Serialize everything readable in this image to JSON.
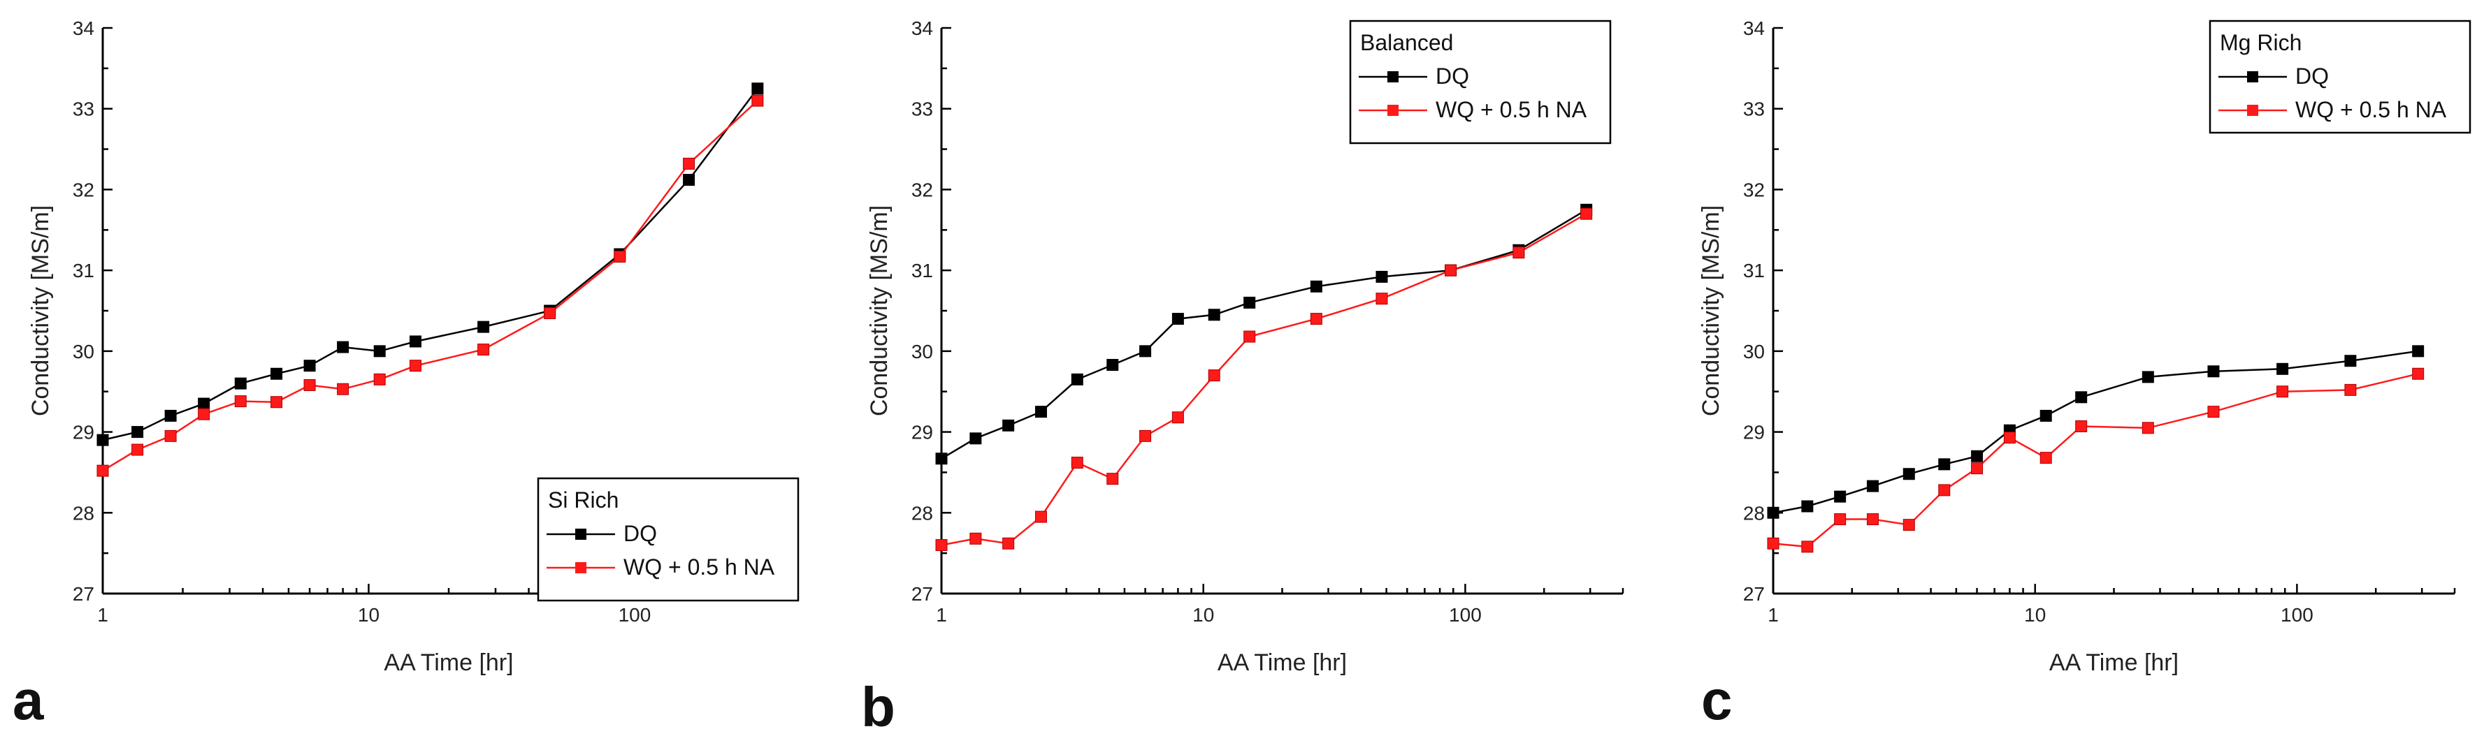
{
  "chart_data": [
    {
      "panel_label": "a",
      "type": "line",
      "xscale": "log",
      "xlabel": "AA Time [hr]",
      "ylabel": "Conductivity [MS/m]",
      "xlim": [
        1,
        400
      ],
      "ylim": [
        27,
        34
      ],
      "xticks": [
        1,
        10,
        100
      ],
      "xtick_labels": [
        "1",
        "10",
        "100"
      ],
      "yticks": [
        27,
        28,
        29,
        30,
        31,
        32,
        33,
        34
      ],
      "ytick_labels": [
        "27",
        "28",
        "29",
        "30",
        "31",
        "32",
        "33",
        "34"
      ],
      "legend_position": "bottom-right",
      "legend_title": "Si Rich",
      "x": [
        1,
        1.35,
        1.8,
        2.4,
        3.3,
        4.5,
        6,
        8,
        11,
        15,
        27,
        48,
        88,
        160,
        290
      ],
      "series": [
        {
          "name": "DQ",
          "color": "#000000",
          "values": [
            28.9,
            29.0,
            29.2,
            29.35,
            29.6,
            29.72,
            29.82,
            30.05,
            30.0,
            30.12,
            30.3,
            30.5,
            31.2,
            32.12,
            33.25
          ]
        },
        {
          "name": "WQ + 0.5 h NA",
          "color": "#ff1a1a",
          "values": [
            28.52,
            28.78,
            28.95,
            29.22,
            29.38,
            29.37,
            29.58,
            29.53,
            29.65,
            29.82,
            30.02,
            30.47,
            31.17,
            32.32,
            33.1
          ]
        }
      ]
    },
    {
      "panel_label": "b",
      "type": "line",
      "xscale": "log",
      "xlabel": "AA Time [hr]",
      "ylabel": "Conductivity [MS/m]",
      "xlim": [
        1,
        400
      ],
      "ylim": [
        27,
        34
      ],
      "xticks": [
        1,
        10,
        100
      ],
      "xtick_labels": [
        "1",
        "10",
        "100"
      ],
      "yticks": [
        27,
        28,
        29,
        30,
        31,
        32,
        33,
        34
      ],
      "ytick_labels": [
        "27",
        "28",
        "29",
        "30",
        "31",
        "32",
        "33",
        "34"
      ],
      "legend_position": "top-right",
      "legend_title": "Balanced",
      "x": [
        1,
        1.35,
        1.8,
        2.4,
        3.3,
        4.5,
        6,
        8,
        11,
        15,
        27,
        48,
        88,
        160,
        290
      ],
      "series": [
        {
          "name": "DQ",
          "color": "#000000",
          "values": [
            28.67,
            28.92,
            29.08,
            29.25,
            29.65,
            29.83,
            30.0,
            30.4,
            30.45,
            30.6,
            30.8,
            30.92,
            31.0,
            31.25,
            31.75
          ]
        },
        {
          "name": "WQ + 0.5 h NA",
          "color": "#ff1a1a",
          "values": [
            27.6,
            27.68,
            27.62,
            27.95,
            28.62,
            28.42,
            28.95,
            29.18,
            29.7,
            30.18,
            30.4,
            30.65,
            31.0,
            31.22,
            31.7
          ]
        }
      ]
    },
    {
      "panel_label": "c",
      "type": "line",
      "xscale": "log",
      "xlabel": "AA Time [hr]",
      "ylabel": "Conductivity [MS/m]",
      "xlim": [
        1,
        400
      ],
      "ylim": [
        27,
        34
      ],
      "xticks": [
        1,
        10,
        100
      ],
      "xtick_labels": [
        "1",
        "10",
        "100"
      ],
      "yticks": [
        27,
        28,
        29,
        30,
        31,
        32,
        33,
        34
      ],
      "ytick_labels": [
        "27",
        "28",
        "29",
        "30",
        "31",
        "32",
        "33",
        "34"
      ],
      "legend_position": "top-right",
      "legend_title": "Mg Rich",
      "x": [
        1,
        1.35,
        1.8,
        2.4,
        3.3,
        4.5,
        6,
        8,
        11,
        15,
        27,
        48,
        88,
        160,
        290
      ],
      "series": [
        {
          "name": "DQ",
          "color": "#000000",
          "values": [
            28.0,
            28.08,
            28.2,
            28.33,
            28.48,
            28.6,
            28.7,
            29.02,
            29.2,
            29.43,
            29.68,
            29.75,
            29.78,
            29.88,
            30.0
          ]
        },
        {
          "name": "WQ + 0.5 h NA",
          "color": "#ff1a1a",
          "values": [
            27.62,
            27.58,
            27.92,
            27.92,
            27.85,
            28.28,
            28.55,
            28.93,
            28.68,
            29.07,
            29.05,
            29.25,
            29.5,
            29.52,
            29.72
          ]
        }
      ]
    }
  ]
}
